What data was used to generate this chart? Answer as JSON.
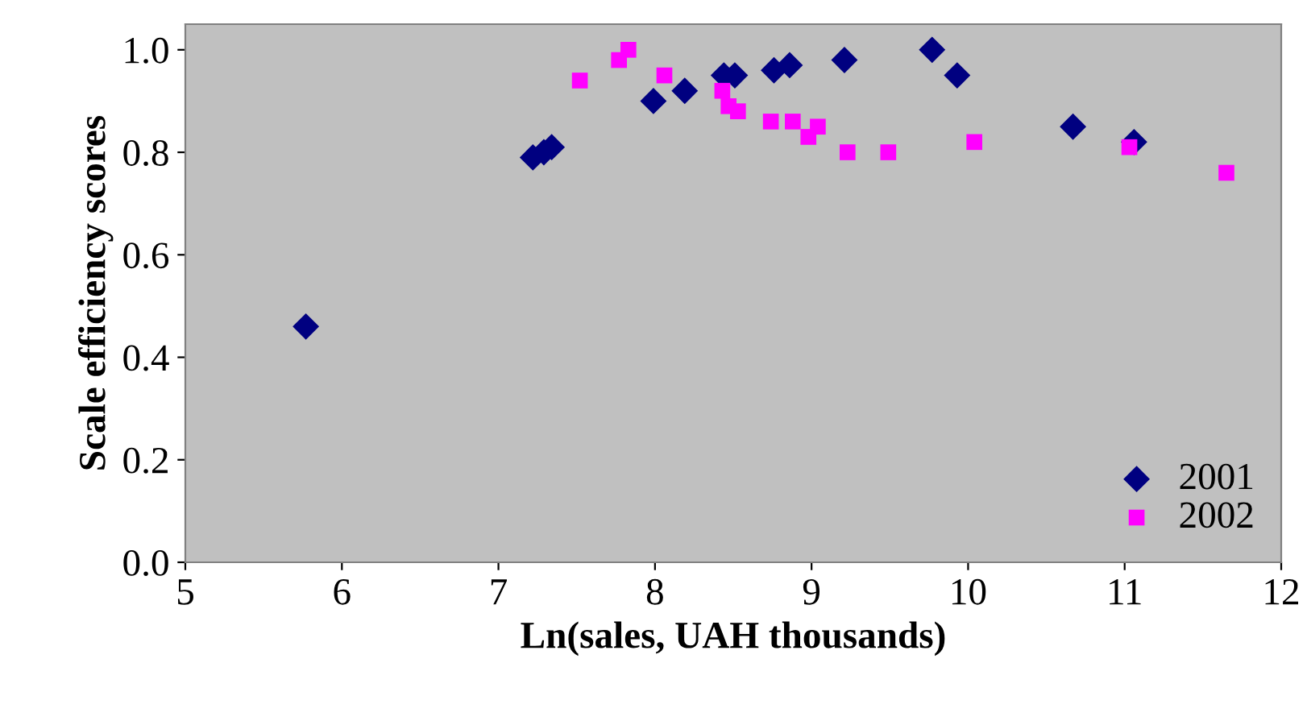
{
  "chart_data": {
    "type": "scatter",
    "xlabel": "Ln(sales, UAH thousands)",
    "ylabel": "Scale efficiency scores",
    "xlim": [
      5,
      12
    ],
    "xticks": [
      5,
      6,
      7,
      8,
      9,
      10,
      11,
      12
    ],
    "ylim": [
      0,
      1.05
    ],
    "yticks": [
      "0.0",
      {
        "value": 0.2,
        "label": "0.2"
      },
      {
        "value": 0.4,
        "label": "0.4"
      },
      {
        "value": 0.6,
        "label": "0.6"
      },
      {
        "value": 0.8,
        "label": "0.8"
      },
      {
        "value": 1.0,
        "label": "1.0"
      }
    ],
    "grid": false,
    "legend": "bottom right",
    "series": [
      {
        "name": "2001",
        "color": "#000080",
        "marker": "diamond",
        "x": [
          5.77,
          7.22,
          7.29,
          7.34,
          7.99,
          8.19,
          8.44,
          8.51,
          8.76,
          8.86,
          9.21,
          9.77,
          9.93,
          10.67,
          11.06
        ],
        "values": [
          0.46,
          0.79,
          0.8,
          0.81,
          0.9,
          0.92,
          0.95,
          0.95,
          0.96,
          0.97,
          0.98,
          1.0,
          0.95,
          0.85,
          0.82
        ]
      },
      {
        "name": "2002",
        "color": "#ff00ff",
        "marker": "square",
        "x": [
          7.52,
          7.77,
          7.83,
          8.06,
          8.43,
          8.47,
          8.53,
          8.74,
          8.88,
          8.98,
          9.04,
          9.23,
          9.49,
          10.04,
          11.03,
          11.65
        ],
        "values": [
          0.94,
          0.98,
          1.0,
          0.95,
          0.92,
          0.89,
          0.88,
          0.86,
          0.86,
          0.83,
          0.85,
          0.8,
          0.8,
          0.82,
          0.81,
          0.76
        ]
      }
    ]
  }
}
